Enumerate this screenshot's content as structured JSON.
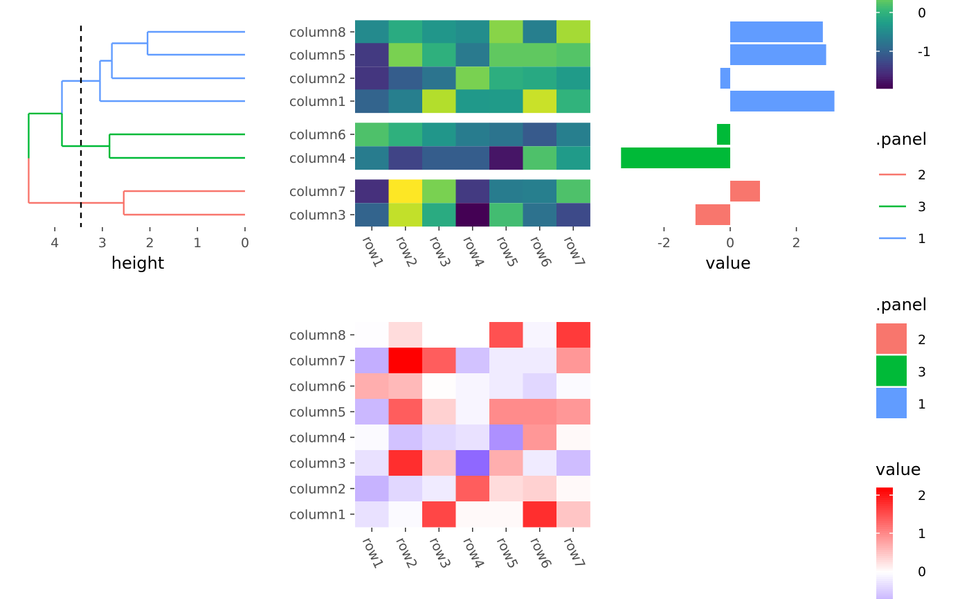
{
  "chart_data": [
    {
      "type": "dendrogram",
      "xlabel": "height",
      "x_ticks": [
        "4",
        "3",
        "2",
        "1",
        "0"
      ],
      "xlim": [
        4.6,
        0
      ],
      "cut_height": 3.45,
      "leaf_order": [
        "column8",
        "column5",
        "column2",
        "column1",
        "column6",
        "column4",
        "column7",
        "column3"
      ],
      "merges": [
        {
          "height": 2.05,
          "members": [
            "column8",
            "column5"
          ],
          "panel": "1"
        },
        {
          "height": 2.8,
          "members": [
            "column8+column5",
            "column2"
          ],
          "panel": "1"
        },
        {
          "height": 3.05,
          "members": [
            "column8+column5+column2",
            "column1"
          ],
          "panel": "1"
        },
        {
          "height": 2.85,
          "members": [
            "column6",
            "column4"
          ],
          "panel": "3"
        },
        {
          "height": 3.85,
          "members": [
            "cluster1",
            "cluster3"
          ],
          "panel": "mixed"
        },
        {
          "height": 2.55,
          "members": [
            "column7",
            "column3"
          ],
          "panel": "2"
        },
        {
          "height": 4.55,
          "members": [
            "cluster1+cluster3",
            "cluster2"
          ],
          "panel": "root"
        }
      ]
    },
    {
      "type": "heatmap",
      "x": [
        "row1",
        "row2",
        "row3",
        "row4",
        "row5",
        "row6",
        "row7"
      ],
      "groups": [
        {
          "panel": "1",
          "rows": [
            "column8",
            "column5",
            "column2",
            "column1"
          ]
        },
        {
          "panel": "3",
          "rows": [
            "column6",
            "column4"
          ]
        },
        {
          "panel": "2",
          "rows": [
            "column7",
            "column3"
          ]
        }
      ],
      "values": {
        "column8": [
          -0.1,
          0.5,
          0.1,
          -0.05,
          1.4,
          -0.3,
          1.6
        ],
        "column5": [
          -1.45,
          1.3,
          0.6,
          -0.4,
          1.1,
          1.1,
          1.0
        ],
        "column2": [
          -1.5,
          -0.9,
          -0.5,
          1.3,
          0.55,
          0.45,
          0.2
        ],
        "column1": [
          -0.8,
          -0.3,
          1.7,
          0.15,
          0.2,
          1.85,
          0.65
        ],
        "column6": [
          0.95,
          0.6,
          0.1,
          -0.35,
          -0.5,
          -0.95,
          -0.3
        ],
        "column4": [
          -0.35,
          -1.3,
          -0.9,
          -0.9,
          -1.95,
          0.95,
          0.2
        ],
        "column7": [
          -1.6,
          2.2,
          1.3,
          -1.45,
          -0.35,
          -0.3,
          0.95
        ],
        "column3": [
          -0.8,
          1.8,
          0.5,
          -2.2,
          0.85,
          -0.55,
          -1.2
        ]
      },
      "colorbar": {
        "title": "",
        "ticks": [
          "0",
          "-1"
        ],
        "palette": "viridis",
        "range": [
          -2.2,
          2.2
        ]
      }
    },
    {
      "type": "bar",
      "orientation": "horizontal",
      "xlabel": "value",
      "x_ticks": [
        "-2",
        "0",
        "2"
      ],
      "xlim": [
        -3.3,
        3.3
      ],
      "categories": [
        "column8",
        "column5",
        "column2",
        "column1",
        "column6",
        "column4",
        "column7",
        "column3"
      ],
      "values": [
        2.8,
        2.9,
        -0.3,
        3.15,
        -0.4,
        -3.3,
        0.9,
        -1.05
      ],
      "panels": [
        "1",
        "1",
        "1",
        "1",
        "3",
        "3",
        "2",
        "2"
      ]
    },
    {
      "type": "heatmap",
      "x": [
        "row1",
        "row2",
        "row3",
        "row4",
        "row5",
        "row6",
        "row7"
      ],
      "y": [
        "column8",
        "column7",
        "column6",
        "column5",
        "column4",
        "column3",
        "column2",
        "column1"
      ],
      "values": [
        [
          -0.02,
          0.3,
          0.0,
          0.0,
          1.5,
          -0.1,
          1.7
        ],
        [
          -0.8,
          2.2,
          1.4,
          -0.6,
          -0.2,
          -0.2,
          0.9
        ],
        [
          0.7,
          0.6,
          0.02,
          -0.1,
          -0.2,
          -0.4,
          -0.05
        ],
        [
          -0.7,
          1.4,
          0.4,
          -0.1,
          1.0,
          1.0,
          0.9
        ],
        [
          -0.05,
          -0.6,
          -0.4,
          -0.3,
          -1.1,
          0.9,
          0.05
        ],
        [
          -0.3,
          1.8,
          0.5,
          -1.5,
          0.7,
          -0.2,
          -0.65
        ],
        [
          -0.75,
          -0.4,
          -0.2,
          1.4,
          0.3,
          0.4,
          0.05
        ],
        [
          -0.3,
          -0.05,
          1.6,
          0.05,
          0.05,
          1.8,
          0.5
        ]
      ],
      "colorbar": {
        "title": "value",
        "ticks": [
          "2",
          "1",
          "0"
        ],
        "low": "#5b21ff",
        "mid": "#ffffff",
        "high": "#ff0000",
        "range": [
          -2.2,
          2.2
        ]
      }
    }
  ],
  "legends": {
    "panel_lines": {
      "title": ".panel",
      "items": [
        {
          "label": "2",
          "color": "#f8766d"
        },
        {
          "label": "3",
          "color": "#00ba38"
        },
        {
          "label": "1",
          "color": "#619cff"
        }
      ]
    },
    "panel_fill": {
      "title": ".panel",
      "items": [
        {
          "label": "2",
          "color": "#f8766d"
        },
        {
          "label": "3",
          "color": "#00ba38"
        },
        {
          "label": "1",
          "color": "#619cff"
        }
      ]
    }
  },
  "colors": {
    "panel_1": "#619cff",
    "panel_2": "#f8766d",
    "panel_3": "#00ba38",
    "mixed": "#619cff"
  }
}
